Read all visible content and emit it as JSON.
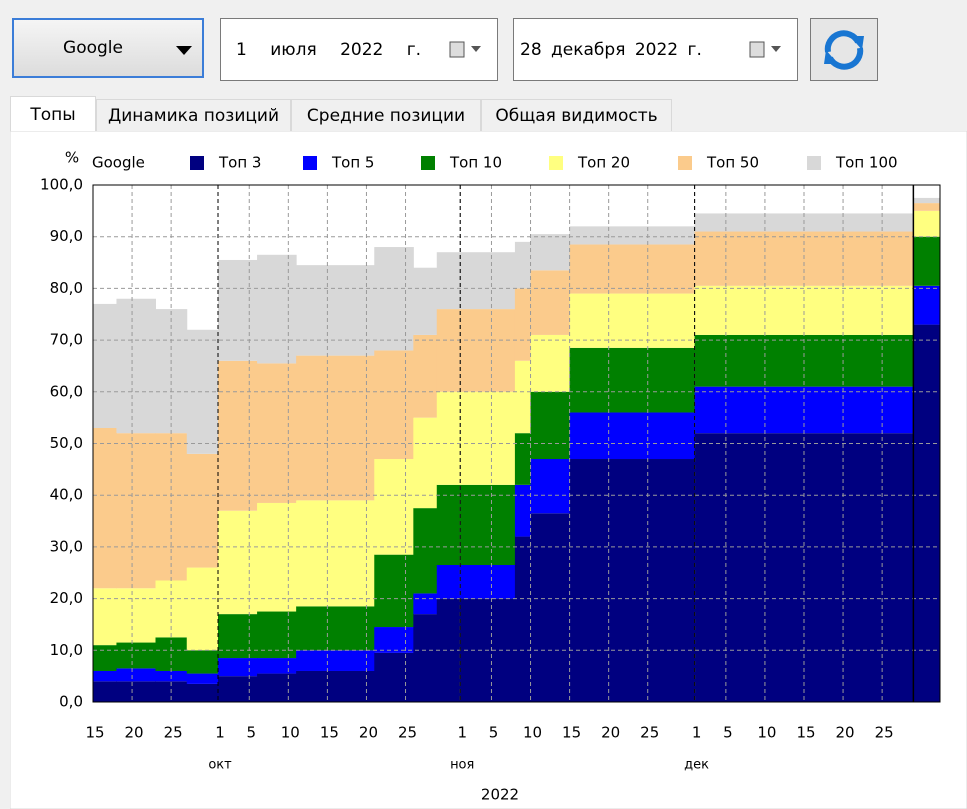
{
  "toolbar": {
    "engine": "Google",
    "date_from": "1 июля 2022 г.",
    "date_to": "28 декабря 2022 г."
  },
  "tabs": [
    "Топы",
    "Динамика позиций",
    "Средние позиции",
    "Общая видимость"
  ],
  "chart_data": {
    "type": "stacked_step_area",
    "y_label": "%",
    "legend_title": "Google",
    "x_label": "2022",
    "x": [
      "2022-09-15",
      "2022-09-18",
      "2022-09-23",
      "2022-09-27",
      "2022-10-01",
      "2022-10-06",
      "2022-10-11",
      "2022-10-21",
      "2022-10-26",
      "2022-10-29",
      "2022-11-08",
      "2022-11-10",
      "2022-11-15",
      "2022-12-01",
      "2022-12-29"
    ],
    "xlim": [
      "2022-09-15",
      "2022-12-31"
    ],
    "xticks": [
      {
        "value": "2022-09-15",
        "label": "15"
      },
      {
        "value": "2022-09-20",
        "label": "20"
      },
      {
        "value": "2022-09-25",
        "label": "25"
      },
      {
        "value": "2022-10-01",
        "label": "1"
      },
      {
        "value": "2022-10-05",
        "label": "5"
      },
      {
        "value": "2022-10-10",
        "label": "10"
      },
      {
        "value": "2022-10-15",
        "label": "15"
      },
      {
        "value": "2022-10-20",
        "label": "20"
      },
      {
        "value": "2022-10-25",
        "label": "25"
      },
      {
        "value": "2022-11-01",
        "label": "1"
      },
      {
        "value": "2022-11-05",
        "label": "5"
      },
      {
        "value": "2022-11-10",
        "label": "10"
      },
      {
        "value": "2022-11-15",
        "label": "15"
      },
      {
        "value": "2022-11-20",
        "label": "20"
      },
      {
        "value": "2022-11-25",
        "label": "25"
      },
      {
        "value": "2022-12-01",
        "label": "1"
      },
      {
        "value": "2022-12-05",
        "label": "5"
      },
      {
        "value": "2022-12-10",
        "label": "10"
      },
      {
        "value": "2022-12-15",
        "label": "15"
      },
      {
        "value": "2022-12-20",
        "label": "20"
      },
      {
        "value": "2022-12-25",
        "label": "25"
      }
    ],
    "month_labels": [
      {
        "value": "2022-10-01",
        "label": "окт"
      },
      {
        "value": "2022-11-01",
        "label": "ноя"
      },
      {
        "value": "2022-12-01",
        "label": "дек"
      }
    ],
    "ylim": [
      0,
      100
    ],
    "yticks": [
      {
        "value": 0,
        "label": "0,0"
      },
      {
        "value": 10,
        "label": "10,0"
      },
      {
        "value": 20,
        "label": "20,0"
      },
      {
        "value": 30,
        "label": "30,0"
      },
      {
        "value": 40,
        "label": "40,0"
      },
      {
        "value": 50,
        "label": "50,0"
      },
      {
        "value": 60,
        "label": "60,0"
      },
      {
        "value": 70,
        "label": "70,0"
      },
      {
        "value": 80,
        "label": "80,0"
      },
      {
        "value": 90,
        "label": "90,0"
      },
      {
        "value": 100,
        "label": "100,0"
      }
    ],
    "grid": true,
    "series": [
      {
        "name": "Топ 3",
        "color": "#000080",
        "values": [
          4,
          4,
          4,
          3.5,
          5,
          5.5,
          6,
          9.5,
          17,
          20,
          32,
          36.5,
          47,
          52,
          73
        ]
      },
      {
        "name": "Топ 5",
        "color": "#0000ff",
        "values": [
          2,
          2.5,
          2,
          2,
          3.5,
          3,
          4,
          5,
          4,
          6.5,
          10,
          10.5,
          9,
          9,
          7.5
        ]
      },
      {
        "name": "Топ 10",
        "color": "#008000",
        "values": [
          5,
          5,
          6.5,
          4.5,
          8.5,
          9,
          8.5,
          14,
          16.5,
          15.5,
          10,
          13,
          12.5,
          10,
          9.5
        ]
      },
      {
        "name": "Топ 20",
        "color": "#ffff80",
        "values": [
          11,
          10.5,
          11,
          16,
          20,
          21,
          20.5,
          18.5,
          17.5,
          18,
          14,
          11,
          10.5,
          9.5,
          5
        ]
      },
      {
        "name": "Топ 50",
        "color": "#fbcb8c",
        "values": [
          31,
          30,
          28.5,
          22,
          29,
          27,
          28,
          21,
          16,
          16,
          14,
          12.5,
          9.5,
          10.5,
          1.5
        ]
      },
      {
        "name": "Топ 100",
        "color": "#d8d8d8",
        "values": [
          24,
          26,
          24,
          24,
          19.5,
          21,
          17.5,
          20,
          13,
          11,
          9,
          7,
          3.5,
          3.5,
          1
        ]
      }
    ]
  }
}
